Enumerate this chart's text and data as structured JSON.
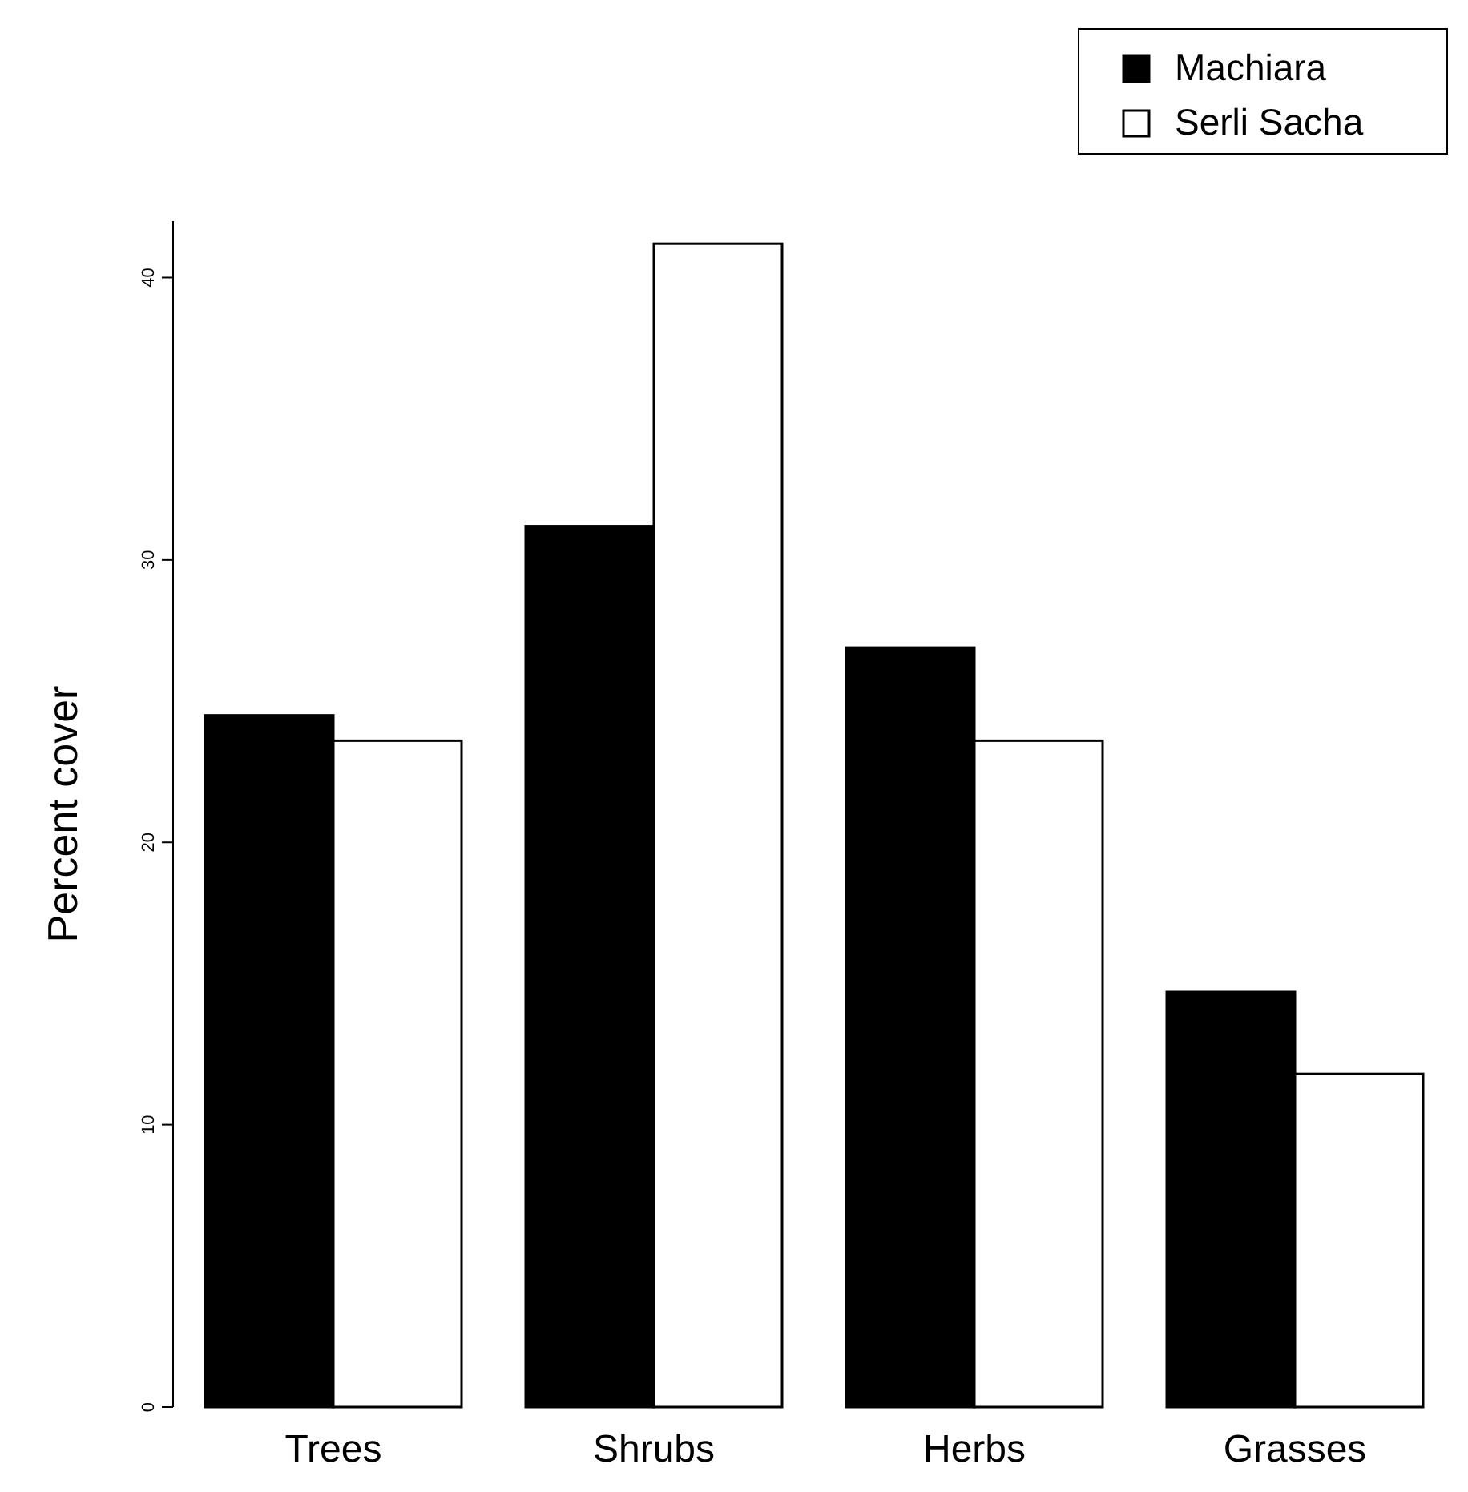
{
  "chart_data": {
    "type": "bar",
    "ylabel": "Percent cover",
    "categories": [
      "Trees",
      "Shrubs",
      "Herbs",
      "Grasses"
    ],
    "series": [
      {
        "name": "Machiara",
        "color": "#000000",
        "values": [
          24.5,
          31.2,
          26.9,
          14.7
        ]
      },
      {
        "name": "Serli Sacha",
        "color": "#ffffff",
        "values": [
          23.6,
          41.2,
          23.6,
          11.8
        ]
      }
    ],
    "ylim": [
      0,
      42
    ],
    "yticks": [
      0,
      10,
      20,
      30,
      40
    ],
    "grid": false,
    "legend": "top right"
  }
}
